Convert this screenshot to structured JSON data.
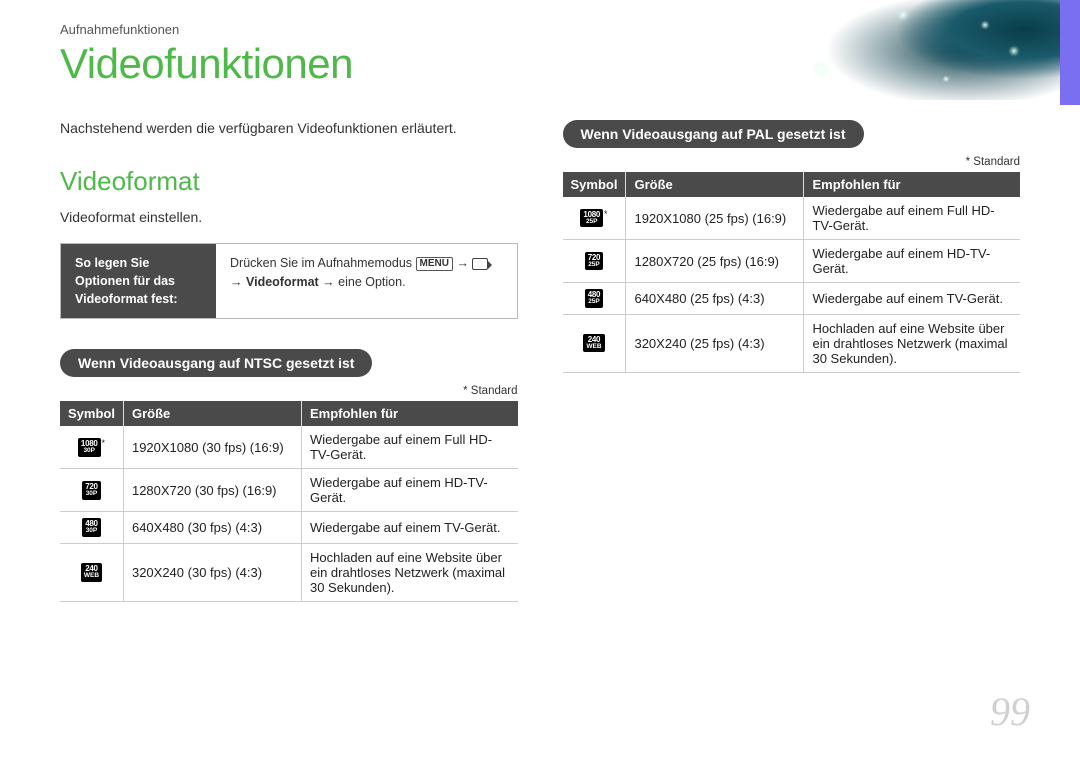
{
  "breadcrumb": "Aufnahmefunktionen",
  "page_title": "Videofunktionen",
  "intro": "Nachstehend werden die verfügbaren Videofunktionen erläutert.",
  "section_title": "Videoformat",
  "subtext": "Videoformat einstellen.",
  "instruction": {
    "left": "So legen Sie Optionen für das Videoformat fest:",
    "right_prefix": "Drücken Sie im Aufnahmemodus ",
    "menu_label": "MENU",
    "arrow": " → ",
    "right_bold": "Videoformat",
    "right_suffix": " → eine Option."
  },
  "standard_note": "* Standard",
  "ntsc": {
    "header": "Wenn Videoausgang auf NTSC gesetzt ist",
    "columns": [
      "Symbol",
      "Größe",
      "Empfohlen für"
    ],
    "rows": [
      {
        "sym_top": "1080",
        "sym_bot": "30P",
        "star": true,
        "size": "1920X1080 (30 fps) (16:9)",
        "rec": "Wiedergabe auf einem Full HD-TV-Gerät."
      },
      {
        "sym_top": "720",
        "sym_bot": "30P",
        "star": false,
        "size": "1280X720 (30 fps) (16:9)",
        "rec": "Wiedergabe auf einem HD-TV-Gerät."
      },
      {
        "sym_top": "480",
        "sym_bot": "30P",
        "star": false,
        "size": "640X480 (30 fps) (4:3)",
        "rec": "Wiedergabe auf einem TV-Gerät."
      },
      {
        "sym_top": "240",
        "sym_bot": "WEB",
        "star": false,
        "size": "320X240 (30 fps) (4:3)",
        "rec": "Hochladen auf eine Website über ein drahtloses Netzwerk (maximal 30 Sekunden)."
      }
    ]
  },
  "pal": {
    "header": "Wenn Videoausgang auf PAL gesetzt ist",
    "columns": [
      "Symbol",
      "Größe",
      "Empfohlen für"
    ],
    "rows": [
      {
        "sym_top": "1080",
        "sym_bot": "25P",
        "star": true,
        "size": "1920X1080 (25 fps) (16:9)",
        "rec": "Wiedergabe auf einem Full HD-TV-Gerät."
      },
      {
        "sym_top": "720",
        "sym_bot": "25P",
        "star": false,
        "size": "1280X720 (25 fps) (16:9)",
        "rec": "Wiedergabe auf einem HD-TV-Gerät."
      },
      {
        "sym_top": "480",
        "sym_bot": "25P",
        "star": false,
        "size": "640X480 (25 fps) (4:3)",
        "rec": "Wiedergabe auf einem TV-Gerät."
      },
      {
        "sym_top": "240",
        "sym_bot": "WEB",
        "star": false,
        "size": "320X240 (25 fps) (4:3)",
        "rec": "Hochladen auf eine Website über ein drahtloses Netzwerk (maximal 30 Sekunden)."
      }
    ]
  },
  "page_number": "99",
  "colors": {
    "accent_green": "#4eb848",
    "dark_gray": "#4a4a4a",
    "purple": "#7a6ff0"
  }
}
